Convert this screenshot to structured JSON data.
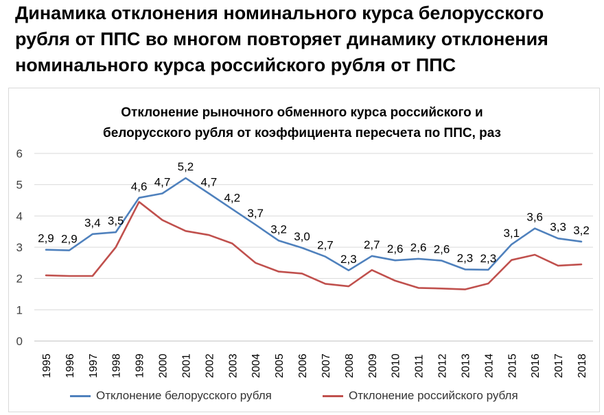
{
  "slide": {
    "title_lines": [
      "Динамика отклонения номинального курса белорусского",
      "рубля от ППС во многом повторяет динамику отклонения",
      "номинального курса российского рубля от ППС"
    ]
  },
  "chart_data": {
    "type": "line",
    "title_lines": [
      "Отклонение рыночного обменного курса российского и",
      "белорусского рубля от коэффициента пересчета по ППС, раз"
    ],
    "categories": [
      "1995",
      "1996",
      "1997",
      "1998",
      "1999",
      "2000",
      "2001",
      "2002",
      "2003",
      "2004",
      "2005",
      "2006",
      "2007",
      "2008",
      "2009",
      "2010",
      "2011",
      "2012",
      "2013",
      "2014",
      "2015",
      "2016",
      "2017",
      "2018"
    ],
    "ylim": [
      0,
      6
    ],
    "yticks": [
      "0",
      "1",
      "2",
      "3",
      "4",
      "5",
      "6"
    ],
    "grid": true,
    "legend_position": "bottom",
    "series": [
      {
        "name": "Отклонение белорусского рубля",
        "color": "#4f81bd",
        "values": [
          2.92,
          2.9,
          3.42,
          3.48,
          4.58,
          4.72,
          5.21,
          4.72,
          4.22,
          3.72,
          3.21,
          2.98,
          2.7,
          2.26,
          2.72,
          2.58,
          2.63,
          2.57,
          2.29,
          2.28,
          3.09,
          3.6,
          3.28,
          3.18
        ],
        "data_labels": [
          "2,9",
          "2,9",
          "3,4",
          "3,5",
          "4,6",
          "4,7",
          "5,2",
          "4,7",
          "4,2",
          "3,7",
          "3,2",
          "3,0",
          "2,7",
          "2,3",
          "2,7",
          "2,6",
          "2,6",
          "2,6",
          "2,3",
          "2,3",
          "3,1",
          "3,6",
          "3,3",
          "3,2"
        ]
      },
      {
        "name": "Отклонение российского рубля",
        "color": "#c0504d",
        "values": [
          2.1,
          2.08,
          2.08,
          3.0,
          4.45,
          3.87,
          3.52,
          3.39,
          3.12,
          2.5,
          2.22,
          2.16,
          1.83,
          1.75,
          2.27,
          1.93,
          1.7,
          1.68,
          1.65,
          1.84,
          2.59,
          2.76,
          2.41,
          2.45
        ]
      }
    ]
  }
}
